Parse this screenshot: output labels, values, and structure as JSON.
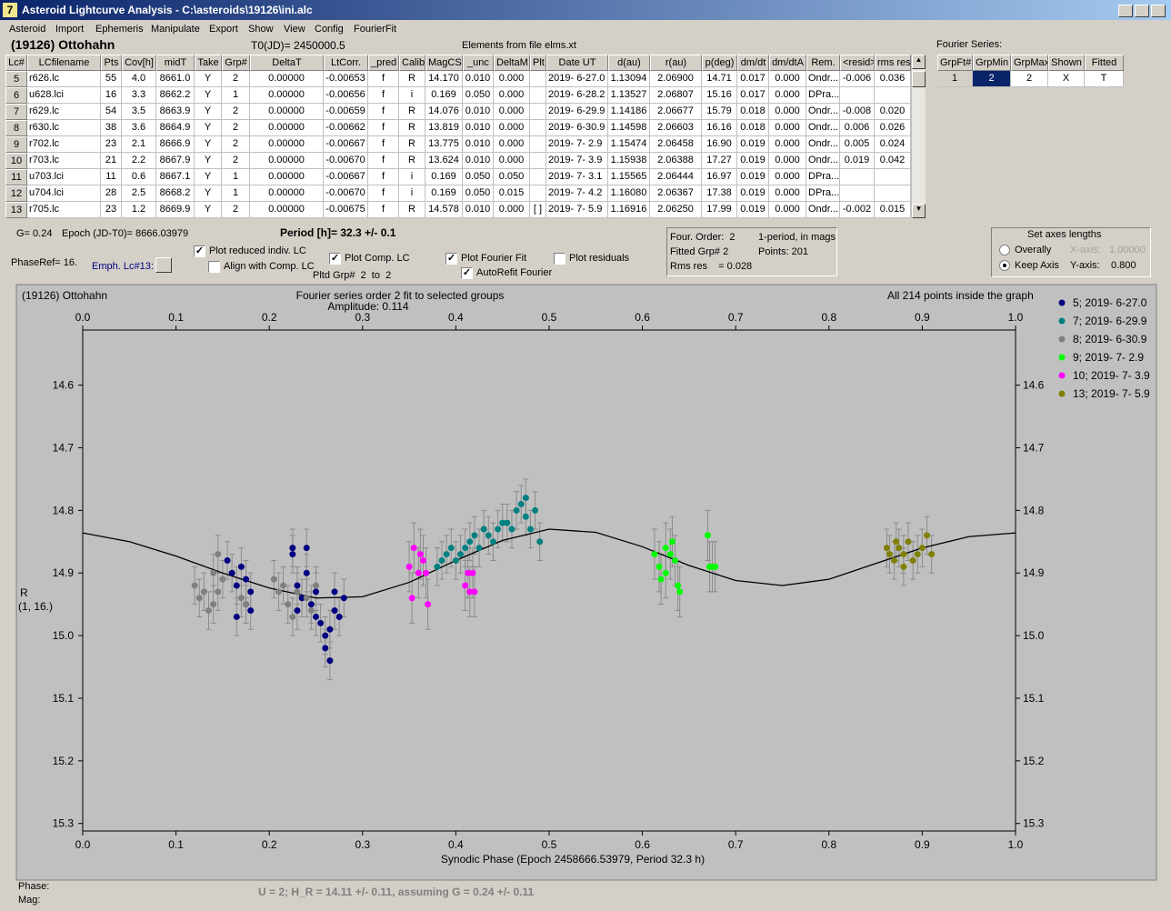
{
  "window": {
    "title": "Asteroid Lightcurve Analysis - C:\\asteroids\\19126\\ini.alc"
  },
  "menu": [
    "Asteroid",
    "Import",
    "Ephemeris",
    "Manipulate",
    "Export",
    "Show",
    "View",
    "Config",
    "FourierFit"
  ],
  "header": {
    "object": "(19126) Ottohahn",
    "t0": "T0(JD)= 2450000.5",
    "elements": "Elements from file elms.xt"
  },
  "table": {
    "columns": [
      "Lc#",
      "LCfilename",
      "Pts",
      "Cov[h]",
      "midT",
      "Take",
      "Grp#",
      "DeltaT",
      "LtCorr.",
      "_pred",
      "Calib",
      "MagCS",
      "_unc",
      "DeltaM",
      "Plt",
      "Date UT",
      "d(au)",
      "r(au)",
      "p(deg)",
      "dm/dt",
      "dm/dtA",
      "Rem.",
      "<resid>",
      "rms res"
    ],
    "rows": [
      [
        "5",
        "r626.lc",
        "55",
        "4.0",
        "8661.0",
        "Y",
        "2",
        "0.00000",
        "-0.00653",
        "f",
        "R",
        "14.170",
        "0.010",
        "0.000",
        null,
        "2019- 6-27.0",
        "1.13094",
        "2.06900",
        "14.71",
        "0.017",
        "0.000",
        "Ondr...",
        "-0.006",
        "0.036"
      ],
      [
        "6",
        "u628.lci",
        "16",
        "3.3",
        "8662.2",
        "Y",
        "1",
        "0.00000",
        "-0.00656",
        "f",
        "i",
        "0.169",
        "0.050",
        "0.000",
        null,
        "2019- 6-28.2",
        "1.13527",
        "2.06807",
        "15.16",
        "0.017",
        "0.000",
        "DPra...",
        null,
        null
      ],
      [
        "7",
        "r629.lc",
        "54",
        "3.5",
        "8663.9",
        "Y",
        "2",
        "0.00000",
        "-0.00659",
        "f",
        "R",
        "14.076",
        "0.010",
        "0.000",
        null,
        "2019- 6-29.9",
        "1.14186",
        "2.06677",
        "15.79",
        "0.018",
        "0.000",
        "Ondr...",
        "-0.008",
        "0.020"
      ],
      [
        "8",
        "r630.lc",
        "38",
        "3.6",
        "8664.9",
        "Y",
        "2",
        "0.00000",
        "-0.00662",
        "f",
        "R",
        "13.819",
        "0.010",
        "0.000",
        null,
        "2019- 6-30.9",
        "1.14598",
        "2.06603",
        "16.16",
        "0.018",
        "0.000",
        "Ondr...",
        "0.006",
        "0.026"
      ],
      [
        "9",
        "r702.lc",
        "23",
        "2.1",
        "8666.9",
        "Y",
        "2",
        "0.00000",
        "-0.00667",
        "f",
        "R",
        "13.775",
        "0.010",
        "0.000",
        null,
        "2019- 7- 2.9",
        "1.15474",
        "2.06458",
        "16.90",
        "0.019",
        "0.000",
        "Ondr...",
        "0.005",
        "0.024"
      ],
      [
        "10",
        "r703.lc",
        "21",
        "2.2",
        "8667.9",
        "Y",
        "2",
        "0.00000",
        "-0.00670",
        "f",
        "R",
        "13.624",
        "0.010",
        "0.000",
        null,
        "2019- 7- 3.9",
        "1.15938",
        "2.06388",
        "17.27",
        "0.019",
        "0.000",
        "Ondr...",
        "0.019",
        "0.042"
      ],
      [
        "11",
        "u703.lci",
        "11",
        "0.6",
        "8667.1",
        "Y",
        "1",
        "0.00000",
        "-0.00667",
        "f",
        "i",
        "0.169",
        "0.050",
        "0.050",
        null,
        "2019- 7- 3.1",
        "1.15565",
        "2.06444",
        "16.97",
        "0.019",
        "0.000",
        "DPra...",
        null,
        null
      ],
      [
        "12",
        "u704.lci",
        "28",
        "2.5",
        "8668.2",
        "Y",
        "1",
        "0.00000",
        "-0.00670",
        "f",
        "i",
        "0.169",
        "0.050",
        "0.015",
        null,
        "2019- 7- 4.2",
        "1.16080",
        "2.06367",
        "17.38",
        "0.019",
        "0.000",
        "DPra...",
        null,
        null
      ],
      [
        "13",
        "r705.lc",
        "23",
        "1.2",
        "8669.9",
        "Y",
        "2",
        "0.00000",
        "-0.00675",
        "f",
        "R",
        "14.578",
        "0.010",
        "0.000",
        "[ ]",
        "2019- 7- 5.9",
        "1.16916",
        "2.06250",
        "17.99",
        "0.019",
        "0.000",
        "Ondr...",
        "-0.002",
        "0.015"
      ]
    ]
  },
  "fourier": {
    "label": "Fourier Series:",
    "columns": [
      "GrpFt#",
      "GrpMin",
      "GrpMax",
      "Shown",
      "Fitted"
    ],
    "row": [
      "1",
      "2",
      "2",
      "X",
      "T"
    ],
    "selected": 1
  },
  "controls": {
    "g": "G= 0.24",
    "epoch": "Epoch (JD-T0)= 8666.03979",
    "period": "Period [h]= 32.3 +/- 0.1",
    "phaseref": "PhaseRef= 16.",
    "emph": "Emph. Lc#13:",
    "pltd_grp": "Pltd Grp#  2  to  2",
    "checkboxes": [
      {
        "label": "Plot reduced indiv. LC",
        "checked": true
      },
      {
        "label": "Align with Comp. LC",
        "checked": false
      },
      {
        "label": "Plot Comp. LC",
        "checked": true
      },
      {
        "label": "Plot Fourier Fit",
        "checked": true
      },
      {
        "label": "AutoRefit Fourier",
        "checked": true
      },
      {
        "label": "Plot residuals",
        "checked": false
      }
    ],
    "info": [
      "Four. Order:  2",
      "1-period, in mags",
      "Fitted Grp# 2",
      "Points: 201",
      "Rms res    = 0.028"
    ],
    "axes": {
      "title": "Set axes lengths",
      "radios": [
        {
          "label": "Overally",
          "selected": false
        },
        {
          "label": "Keep Axis",
          "selected": true
        }
      ],
      "x_label": "X-axis:",
      "x_value": "1.00000",
      "y_label": "Y-axis:",
      "y_value": "0.800"
    }
  },
  "status": {
    "phase": "Phase:",
    "mag": "Mag:",
    "result": "U = 2; H_R = 14.11 +/- 0.11, assuming G = 0.24 +/- 0.11"
  },
  "chart_data": {
    "type": "scatter",
    "title": "Fourier series order 2 fit to selected groups",
    "subtitle": "Amplitude: 0.114",
    "object": "(19126) Ottohahn",
    "note": "All 214 points inside the graph",
    "x_label": "Synodic Phase (Epoch 2458666.53979, Period 32.3 h)",
    "y_label": "R",
    "y_label_sub": "(1, 16.)",
    "xlim": [
      0,
      1
    ],
    "xticks": [
      {
        "value": 0,
        "label": "0.0"
      },
      0.1,
      0.2,
      0.3,
      0.4,
      0.5,
      0.6,
      0.7,
      0.8,
      0.9,
      {
        "value": 1,
        "label": "1.0"
      }
    ],
    "ylim": [
      14.512,
      15.312
    ],
    "y_inverted": true,
    "yticks": [
      14.6,
      14.7,
      14.8,
      14.9,
      {
        "value": 15,
        "label": "15.0"
      },
      15.1,
      15.2,
      15.3
    ],
    "legend": "right",
    "series": [
      {
        "name": "5; 2019- 6-27.0",
        "color": "#000080",
        "yerr": 0.03,
        "x": [
          0.155,
          0.16,
          0.165,
          0.17,
          0.175,
          0.165,
          0.175,
          0.18,
          0.18,
          0.225,
          0.23,
          0.235,
          0.225,
          0.24,
          0.24,
          0.245,
          0.25,
          0.255,
          0.26,
          0.26,
          0.265,
          0.27,
          0.27,
          0.275,
          0.28,
          0.25,
          0.23,
          0.265
        ],
        "y": [
          14.88,
          14.9,
          14.92,
          14.89,
          14.91,
          14.97,
          14.95,
          14.93,
          14.96,
          14.86,
          14.92,
          14.94,
          14.87,
          14.86,
          14.9,
          14.95,
          14.97,
          14.98,
          15.0,
          15.02,
          14.99,
          14.96,
          14.93,
          14.97,
          14.94,
          14.93,
          14.96,
          15.04
        ]
      },
      {
        "name": "7; 2019- 6-29.9",
        "color": "#008080",
        "yerr": 0.03,
        "x": [
          0.38,
          0.385,
          0.39,
          0.395,
          0.4,
          0.405,
          0.41,
          0.415,
          0.42,
          0.425,
          0.43,
          0.435,
          0.44,
          0.445,
          0.45,
          0.455,
          0.46,
          0.465,
          0.47,
          0.475,
          0.48,
          0.485,
          0.49,
          0.475
        ],
        "y": [
          14.89,
          14.88,
          14.87,
          14.86,
          14.88,
          14.87,
          14.86,
          14.85,
          14.84,
          14.86,
          14.83,
          14.84,
          14.85,
          14.83,
          14.82,
          14.82,
          14.83,
          14.8,
          14.79,
          14.81,
          14.83,
          14.8,
          14.85,
          14.78
        ]
      },
      {
        "name": "8; 2019- 6-30.9",
        "color": "#808080",
        "yerr": 0.03,
        "x": [
          0.12,
          0.125,
          0.13,
          0.135,
          0.14,
          0.14,
          0.145,
          0.145,
          0.15,
          0.205,
          0.21,
          0.215,
          0.22,
          0.225,
          0.23,
          0.24,
          0.245,
          0.25,
          0.17,
          0.175
        ],
        "y": [
          14.92,
          14.94,
          14.93,
          14.96,
          14.9,
          14.95,
          14.93,
          14.87,
          14.91,
          14.91,
          14.93,
          14.92,
          14.95,
          14.97,
          14.93,
          14.94,
          14.96,
          14.92,
          14.94,
          14.95
        ]
      },
      {
        "name": "9; 2019- 7- 2.9",
        "color": "#00ff00",
        "yerr": 0.04,
        "x": [
          0.613,
          0.618,
          0.62,
          0.625,
          0.625,
          0.63,
          0.632,
          0.635,
          0.638,
          0.64,
          0.67,
          0.672,
          0.675,
          0.678
        ],
        "y": [
          14.87,
          14.89,
          14.91,
          14.9,
          14.86,
          14.87,
          14.85,
          14.88,
          14.92,
          14.93,
          14.84,
          14.89,
          14.89,
          14.89
        ]
      },
      {
        "name": "10; 2019- 7- 3.9",
        "color": "#ff00ff",
        "yerr": 0.04,
        "x": [
          0.35,
          0.353,
          0.355,
          0.36,
          0.362,
          0.365,
          0.37,
          0.368,
          0.41,
          0.413,
          0.415,
          0.42,
          0.418
        ],
        "y": [
          14.89,
          14.94,
          14.86,
          14.9,
          14.87,
          14.88,
          14.95,
          14.9,
          14.92,
          14.9,
          14.93,
          14.93,
          14.9
        ]
      },
      {
        "name": "13; 2019- 7- 5.9",
        "color": "#808000",
        "yerr": 0.03,
        "x": [
          0.862,
          0.865,
          0.87,
          0.872,
          0.875,
          0.88,
          0.885,
          0.89,
          0.895,
          0.9,
          0.905,
          0.91,
          0.88
        ],
        "y": [
          14.86,
          14.87,
          14.88,
          14.85,
          14.86,
          14.87,
          14.85,
          14.88,
          14.87,
          14.86,
          14.84,
          14.87,
          14.89
        ]
      }
    ],
    "fit": {
      "color": "#000000",
      "x": [
        0,
        0.05,
        0.1,
        0.15,
        0.2,
        0.25,
        0.3,
        0.35,
        0.4,
        0.45,
        0.5,
        0.55,
        0.6,
        0.65,
        0.7,
        0.75,
        0.8,
        0.85,
        0.9,
        0.95,
        1
      ],
      "y": [
        14.836,
        14.85,
        14.873,
        14.9,
        14.924,
        14.94,
        14.938,
        14.915,
        14.88,
        14.848,
        14.83,
        14.835,
        14.858,
        14.888,
        14.912,
        14.92,
        14.91,
        14.885,
        14.86,
        14.842,
        14.836
      ]
    }
  }
}
